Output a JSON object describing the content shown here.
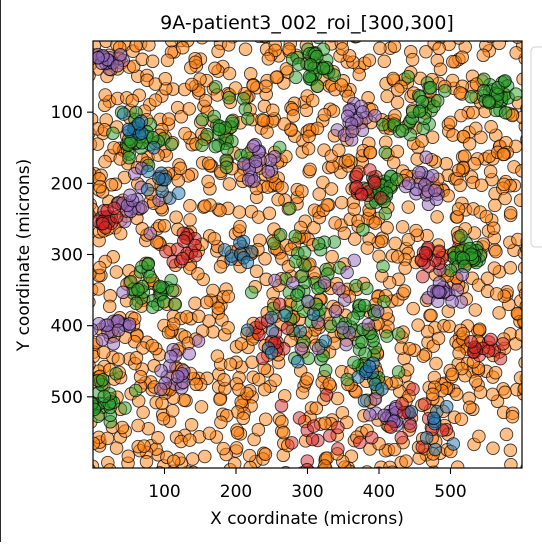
{
  "chart_data": {
    "type": "scatter",
    "title": "9A-patient3_002_roi_[300,300]",
    "xlabel": "X coordinate (microns)",
    "ylabel": "Y coordinate (microns)",
    "xlim": [
      0,
      600
    ],
    "ylim": [
      600,
      0
    ],
    "y_axis_inverted": true,
    "xticks": [
      100,
      200,
      300,
      400,
      500
    ],
    "yticks": [
      100,
      200,
      300,
      400,
      500
    ],
    "grid": false,
    "legend_placement": "right, outside plot area (entries not legible)",
    "marker": {
      "shape": "circle",
      "alpha": 0.5,
      "edgecolor": "#000000"
    },
    "series_colors": {
      "orange": "#ff7f0e",
      "green": "#2ca02c",
      "purple": "#9467bd",
      "red": "#d62728",
      "blue": "#1f77b4"
    },
    "series": [
      {
        "color": "#ff7f0e",
        "approx_count": 1300,
        "distribution": "background cells spread across the whole field",
        "clusters": [
          [
            300,
            300,
            600
          ],
          [
            300,
            300,
            600
          ]
        ]
      },
      {
        "color": "#2ca02c",
        "approx_count": 330,
        "clusters": [
          [
            330,
            390,
            85
          ],
          [
            300,
            330,
            60
          ],
          [
            370,
            420,
            50
          ],
          [
            190,
            130,
            40
          ],
          [
            60,
            140,
            30
          ],
          [
            450,
            100,
            35
          ],
          [
            560,
            70,
            25
          ],
          [
            80,
            350,
            30
          ],
          [
            20,
            510,
            30
          ],
          [
            310,
            30,
            25
          ],
          [
            410,
            210,
            25
          ],
          [
            520,
            300,
            20
          ]
        ]
      },
      {
        "color": "#9467bd",
        "approx_count": 170,
        "clusters": [
          [
            340,
            380,
            60
          ],
          [
            30,
            400,
            25
          ],
          [
            60,
            230,
            25
          ],
          [
            230,
            170,
            25
          ],
          [
            360,
            110,
            20
          ],
          [
            460,
            200,
            25
          ],
          [
            490,
            350,
            20
          ],
          [
            120,
            470,
            25
          ],
          [
            20,
            30,
            15
          ],
          [
            420,
            530,
            20
          ]
        ]
      },
      {
        "color": "#d62728",
        "approx_count": 110,
        "clusters": [
          [
            320,
            570,
            50
          ],
          [
            450,
            530,
            40
          ],
          [
            380,
            200,
            25
          ],
          [
            130,
            290,
            20
          ],
          [
            20,
            250,
            15
          ],
          [
            250,
            420,
            30
          ],
          [
            470,
            310,
            20
          ],
          [
            550,
            430,
            20
          ]
        ]
      },
      {
        "color": "#1f77b4",
        "approx_count": 55,
        "clusters": [
          [
            260,
            400,
            40
          ],
          [
            480,
            530,
            40
          ],
          [
            110,
            210,
            25
          ],
          [
            60,
            120,
            20
          ],
          [
            390,
            470,
            25
          ],
          [
            200,
            290,
            20
          ]
        ]
      }
    ]
  }
}
